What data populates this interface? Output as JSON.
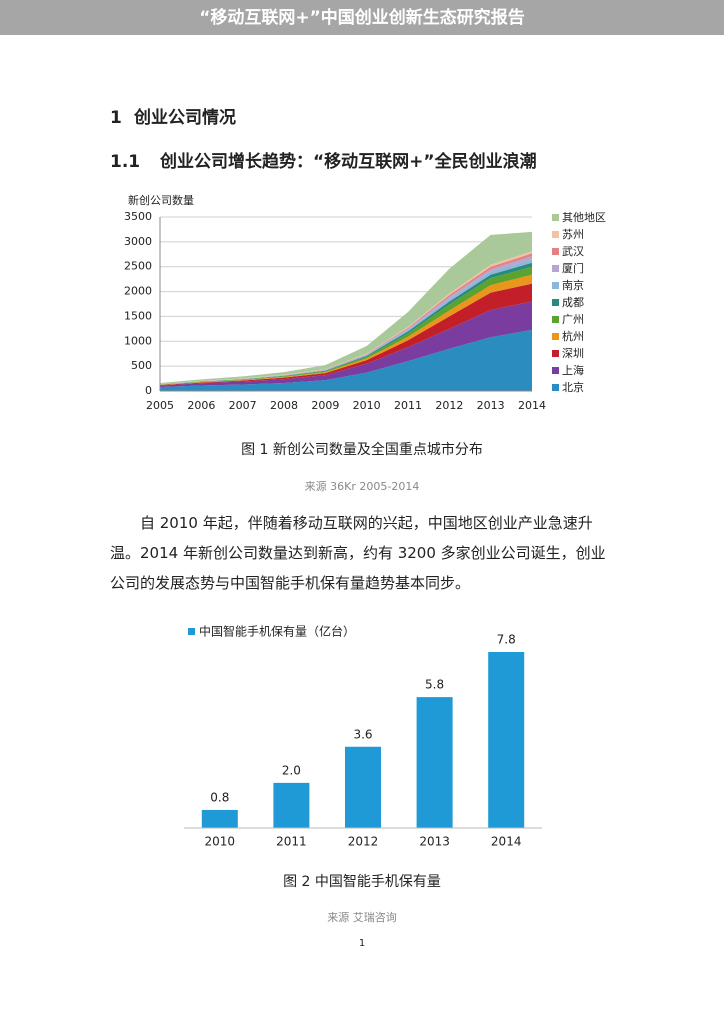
{
  "header": {
    "title": "“移动互联网+”中国创业创新生态研究报告"
  },
  "section": {
    "number": "1",
    "title": "创业公司情况"
  },
  "subsection": {
    "number": "1.1",
    "title": "创业公司增长趋势：“移动互联网+”全民创业浪潮"
  },
  "chart_data": [
    {
      "type": "area",
      "stacked": true,
      "y_label": "新创公司数量",
      "categories": [
        "2005",
        "2006",
        "2007",
        "2008",
        "2009",
        "2010",
        "2011",
        "2012",
        "2013",
        "2014"
      ],
      "ylim": [
        0,
        3500
      ],
      "yticks": [
        0,
        500,
        1000,
        1500,
        2000,
        2500,
        3000,
        3500
      ],
      "grid": true,
      "legend": "right",
      "series": [
        {
          "name": "北京",
          "color": "#2b8cbf",
          "values": [
            80,
            110,
            130,
            160,
            220,
            370,
            600,
            850,
            1080,
            1230
          ]
        },
        {
          "name": "上海",
          "color": "#7a3c9e",
          "values": [
            30,
            45,
            60,
            80,
            100,
            180,
            280,
            400,
            550,
            570
          ]
        },
        {
          "name": "深圳",
          "color": "#c21f2a",
          "values": [
            10,
            15,
            20,
            30,
            40,
            70,
            140,
            250,
            350,
            360
          ]
        },
        {
          "name": "杭州",
          "color": "#ea951b",
          "values": [
            5,
            8,
            10,
            15,
            20,
            35,
            70,
            120,
            150,
            180
          ]
        },
        {
          "name": "广州",
          "color": "#5ca22e",
          "values": [
            5,
            8,
            10,
            15,
            20,
            35,
            70,
            120,
            140,
            160
          ]
        },
        {
          "name": "成都",
          "color": "#2a8b7c",
          "values": [
            3,
            5,
            6,
            8,
            10,
            20,
            40,
            60,
            70,
            80
          ]
        },
        {
          "name": "南京",
          "color": "#8cb6da",
          "values": [
            3,
            4,
            5,
            7,
            10,
            15,
            30,
            50,
            60,
            70
          ]
        },
        {
          "name": "厦门",
          "color": "#b5a6d6",
          "values": [
            2,
            3,
            4,
            5,
            7,
            10,
            20,
            40,
            50,
            60
          ]
        },
        {
          "name": "武汉",
          "color": "#e28282",
          "values": [
            2,
            3,
            4,
            5,
            7,
            10,
            20,
            40,
            50,
            60
          ]
        },
        {
          "name": "苏州",
          "color": "#f2c2a2",
          "values": [
            2,
            3,
            4,
            5,
            6,
            10,
            20,
            30,
            40,
            40
          ]
        },
        {
          "name": "其他地区",
          "color": "#a9c99a",
          "values": [
            20,
            30,
            40,
            50,
            80,
            150,
            300,
            500,
            600,
            390
          ]
        }
      ]
    },
    {
      "type": "bar",
      "categories": [
        "2010",
        "2011",
        "2012",
        "2013",
        "2014"
      ],
      "series": [
        {
          "name": "中国智能手机保有量（亿台）",
          "color": "#1f9ad6",
          "values": [
            0.8,
            2.0,
            3.6,
            5.8,
            7.8
          ],
          "value_labels": [
            "0.8",
            "2.0",
            "3.6",
            "5.8",
            "7.8"
          ]
        }
      ]
    }
  ],
  "figures": [
    {
      "caption": "图 1  新创公司数量及全国重点城市分布",
      "source": "来源 36Kr 2005-2014"
    },
    {
      "caption": "图 2  中国智能手机保有量",
      "source": "来源  艾瑞咨询"
    }
  ],
  "paragraph": "自 2010 年起，伴随着移动互联网的兴起，中国地区创业产业急速升温。2014 年新创公司数量达到新高，约有 3200 多家创业公司诞生，创业公司的发展态势与中国智能手机保有量趋势基本同步。",
  "page_number": "1"
}
